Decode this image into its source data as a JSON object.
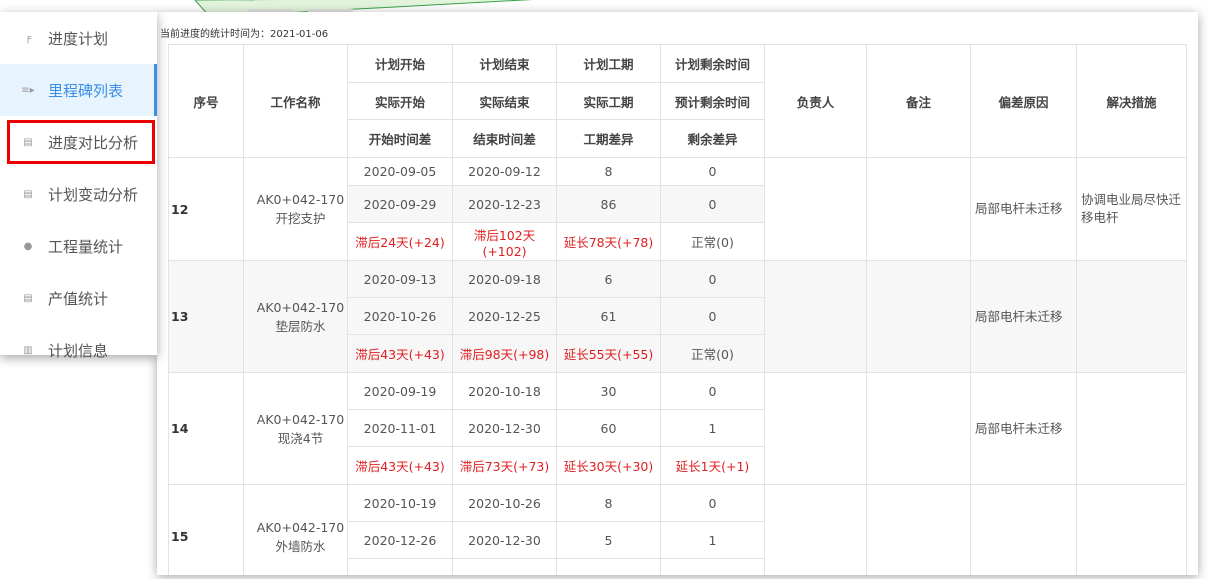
{
  "sidebar": {
    "items": [
      {
        "label": "进度计划",
        "icon": "plan-icon"
      },
      {
        "label": "里程碑列表",
        "icon": "milestone-icon",
        "active": true
      },
      {
        "label": "进度对比分析",
        "icon": "bar-chart-icon",
        "highlighted": true
      },
      {
        "label": "计划变动分析",
        "icon": "bar-chart-icon"
      },
      {
        "label": "工程量统计",
        "icon": "pie-chart-icon"
      },
      {
        "label": "产值统计",
        "icon": "bar-chart-icon"
      },
      {
        "label": "计划信息",
        "icon": "document-icon"
      }
    ]
  },
  "main": {
    "caption": "当前进度的统计时间为：2021-01-06",
    "headers": {
      "seq": "序号",
      "name": "工作名称",
      "row1": [
        "计划开始",
        "计划结束",
        "计划工期",
        "计划剩余时间"
      ],
      "row2": [
        "实际开始",
        "实际结束",
        "实际工期",
        "预计剩余时间"
      ],
      "row3": [
        "开始时间差",
        "结束时间差",
        "工期差异",
        "剩余差异"
      ],
      "owner": "负责人",
      "remark": "备注",
      "reason": "偏差原因",
      "measure": "解决措施"
    },
    "rows": [
      {
        "seq": "12",
        "name": "AK0+042-170开挖支护",
        "plan": [
          "2020-09-05",
          "2020-09-12",
          "8",
          "0"
        ],
        "actual": [
          "2020-09-29",
          "2020-12-23",
          "86",
          "0"
        ],
        "diff": [
          "滞后24天(+24)",
          "滞后102天(+102)",
          "延长78天(+78)",
          "正常(0)"
        ],
        "owner": "",
        "remark": "",
        "reason": "局部电杆未迁移",
        "measure": "协调电业局尽快迁移电杆"
      },
      {
        "seq": "13",
        "name": "AK0+042-170垫层防水",
        "plan": [
          "2020-09-13",
          "2020-09-18",
          "6",
          "0"
        ],
        "actual": [
          "2020-10-26",
          "2020-12-25",
          "61",
          "0"
        ],
        "diff": [
          "滞后43天(+43)",
          "滞后98天(+98)",
          "延长55天(+55)",
          "正常(0)"
        ],
        "owner": "",
        "remark": "",
        "reason": "局部电杆未迁移",
        "measure": ""
      },
      {
        "seq": "14",
        "name": "AK0+042-170现浇4节",
        "plan": [
          "2020-09-19",
          "2020-10-18",
          "30",
          "0"
        ],
        "actual": [
          "2020-11-01",
          "2020-12-30",
          "60",
          "1"
        ],
        "diff": [
          "滞后43天(+43)",
          "滞后73天(+73)",
          "延长30天(+30)",
          "延长1天(+1)"
        ],
        "owner": "",
        "remark": "",
        "reason": "局部电杆未迁移",
        "measure": ""
      },
      {
        "seq": "15",
        "name": "AK0+042-170外墙防水",
        "plan": [
          "2020-10-19",
          "2020-10-26",
          "8",
          "0"
        ],
        "actual": [
          "2020-12-26",
          "2020-12-30",
          "5",
          "1"
        ],
        "diff": [
          "",
          "",
          "",
          ""
        ],
        "owner": "",
        "remark": "",
        "reason": "",
        "measure": ""
      }
    ]
  },
  "colors": {
    "accent": "#3a8ee6",
    "alert": "#e02020",
    "highlight_box": "#e00000",
    "callout_fill": "#e3f4dc"
  }
}
